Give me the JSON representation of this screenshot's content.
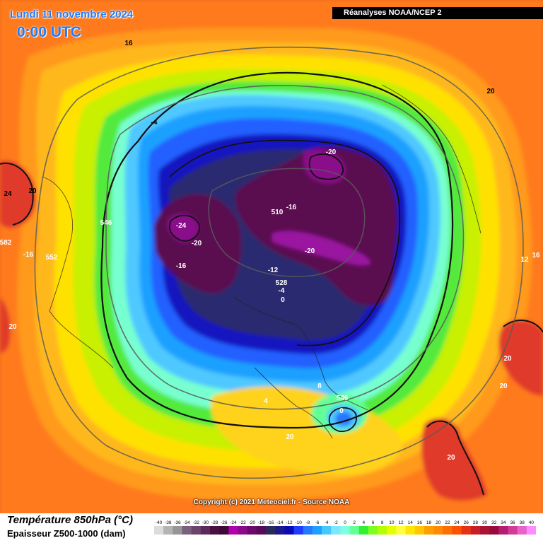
{
  "header": {
    "date": "Lundi 11 novembre 2024",
    "time": "0:00 UTC",
    "source": "Réanalyses NOAA/NCEP 2"
  },
  "copyright": "Copyright (c) 2021 Meteociel.fr - Source NOAA",
  "legend": {
    "title_temp": "Température 850hPa (°C)",
    "title_thickness": "Epaisseur Z500-1000 (dam)",
    "scale_values": [
      "-40",
      "-38",
      "-36",
      "-34",
      "-32",
      "-30",
      "-28",
      "-26",
      "-24",
      "-22",
      "-20",
      "-18",
      "-16",
      "-14",
      "-12",
      "-10",
      "-8",
      "-6",
      "-4",
      "-2",
      "0",
      "2",
      "4",
      "6",
      "8",
      "10",
      "12",
      "14",
      "16",
      "18",
      "20",
      "22",
      "24",
      "26",
      "28",
      "30",
      "32",
      "34",
      "36",
      "38",
      "40"
    ],
    "scale_colors": [
      "#dcdcdc",
      "#b4b4b4",
      "#969696",
      "#7a607a",
      "#6a466a",
      "#5e2a5e",
      "#4a1040",
      "#3c0a34",
      "#b000b0",
      "#8a0a8a",
      "#6a0a6a",
      "#580a58",
      "#2a2a5a",
      "#1a1a8c",
      "#0a0ab4",
      "#1e3cff",
      "#2878ff",
      "#1ea0ff",
      "#46c8ff",
      "#7ee6ff",
      "#7dffe0",
      "#64ff96",
      "#32f032",
      "#7cff20",
      "#b4ff00",
      "#e6ff00",
      "#ffff40",
      "#ffe600",
      "#ffc800",
      "#ffa000",
      "#ff8c00",
      "#ff6e00",
      "#ff5000",
      "#e63214",
      "#c81e28",
      "#aa1432",
      "#960a3c",
      "#b41e6e",
      "#d23c96",
      "#e664c8",
      "#ff8cff"
    ]
  },
  "map_labels": [
    {
      "text": "16",
      "color": "#000"
    },
    {
      "text": "-4",
      "color": "#000"
    },
    {
      "text": "24",
      "color": "#000"
    },
    {
      "text": "20",
      "color": "#000"
    },
    {
      "text": "546",
      "color": "#fff"
    },
    {
      "text": "582",
      "color": "#fff"
    },
    {
      "text": "-16",
      "color": "#fff"
    },
    {
      "text": "552",
      "color": "#fff"
    },
    {
      "text": "20",
      "color": "#fff"
    },
    {
      "text": "-24",
      "color": "#fff"
    },
    {
      "text": "-20",
      "color": "#fff"
    },
    {
      "text": "-16",
      "color": "#fff"
    },
    {
      "text": "-20",
      "color": "#fff"
    },
    {
      "text": "510",
      "color": "#fff"
    },
    {
      "text": "-16",
      "color": "#fff"
    },
    {
      "text": "-20",
      "color": "#fff"
    },
    {
      "text": "-12",
      "color": "#fff"
    },
    {
      "text": "528",
      "color": "#fff"
    },
    {
      "text": "-4",
      "color": "#fff"
    },
    {
      "text": "0",
      "color": "#fff"
    },
    {
      "text": "20",
      "color": "#000"
    },
    {
      "text": "16",
      "color": "#fff"
    },
    {
      "text": "12",
      "color": "#fff"
    },
    {
      "text": "20",
      "color": "#fff"
    },
    {
      "text": "20",
      "color": "#fff"
    },
    {
      "text": "8",
      "color": "#fff"
    },
    {
      "text": "546",
      "color": "#fff"
    },
    {
      "text": "0",
      "color": "#fff"
    },
    {
      "text": "4",
      "color": "#fff"
    },
    {
      "text": "20",
      "color": "#fff"
    },
    {
      "text": "20",
      "color": "#fff"
    }
  ]
}
